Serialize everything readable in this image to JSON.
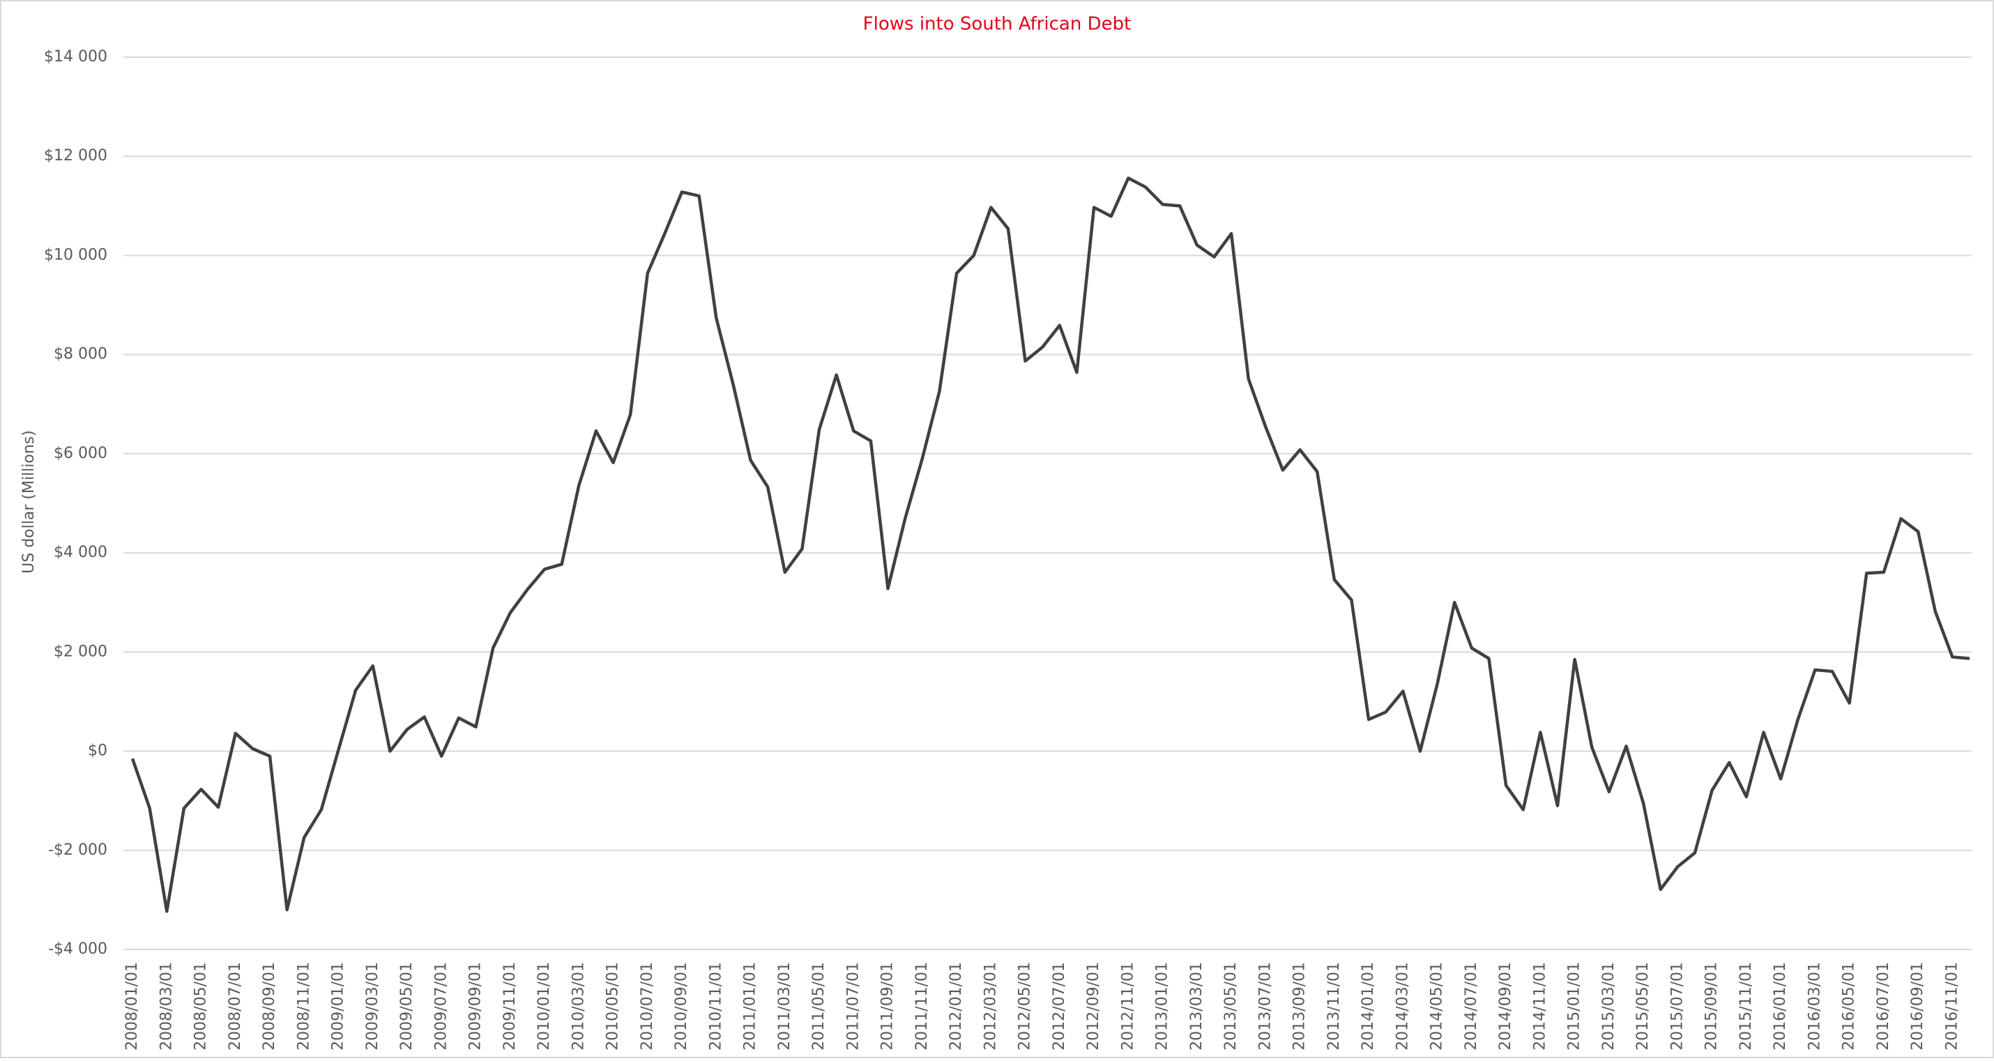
{
  "chart_data": {
    "type": "line",
    "title": "Flows into South African Debt",
    "y_label": "US dollar (Millions)",
    "color": "#404040",
    "grid": true,
    "ylim": [
      -4000,
      14000
    ],
    "yticks": [
      {
        "value": -4000,
        "label": "-$4 000"
      },
      {
        "value": -2000,
        "label": "-$2 000"
      },
      {
        "value": 0,
        "label": "$0"
      },
      {
        "value": 2000,
        "label": "$2 000"
      },
      {
        "value": 4000,
        "label": "$4 000"
      },
      {
        "value": 6000,
        "label": "$6 000"
      },
      {
        "value": 8000,
        "label": "$8 000"
      },
      {
        "value": 10000,
        "label": "$10 000"
      },
      {
        "value": 12000,
        "label": "$12 000"
      },
      {
        "value": 14000,
        "label": "$14 000"
      }
    ],
    "categories": [
      "2008/01/01",
      null,
      "2008/03/01",
      null,
      "2008/05/01",
      null,
      "2008/07/01",
      null,
      "2008/09/01",
      null,
      "2008/11/01",
      null,
      "2009/01/01",
      null,
      "2009/03/01",
      null,
      "2009/05/01",
      null,
      "2009/07/01",
      null,
      "2009/09/01",
      null,
      "2009/11/01",
      null,
      "2010/01/01",
      null,
      "2010/03/01",
      null,
      "2010/05/01",
      null,
      "2010/07/01",
      null,
      "2010/09/01",
      null,
      "2010/11/01",
      null,
      "2011/01/01",
      null,
      "2011/03/01",
      null,
      "2011/05/01",
      null,
      "2011/07/01",
      null,
      "2011/09/01",
      null,
      "2011/11/01",
      null,
      "2012/01/01",
      null,
      "2012/03/01",
      null,
      "2012/05/01",
      null,
      "2012/07/01",
      null,
      "2012/09/01",
      null,
      "2012/11/01",
      null,
      "2013/01/01",
      null,
      "2013/03/01",
      null,
      "2013/05/01",
      null,
      "2013/07/01",
      null,
      "2013/09/01",
      null,
      "2013/11/01",
      null,
      "2014/01/01",
      null,
      "2014/03/01",
      null,
      "2014/05/01",
      null,
      "2014/07/01",
      null,
      "2014/09/01",
      null,
      "2014/11/01",
      null,
      "2015/01/01",
      null,
      "2015/03/01",
      null,
      "2015/05/01",
      null,
      "2015/07/01",
      null,
      "2015/09/01",
      null,
      "2015/11/01",
      null,
      "2016/01/01",
      null,
      "2016/03/01",
      null,
      "2016/05/01",
      null,
      "2016/07/01",
      null,
      "2016/09/01",
      null,
      "2016/11/01",
      null
    ],
    "values": [
      -150,
      -1150,
      -3230,
      -1150,
      -770,
      -1130,
      360,
      50,
      -100,
      -3200,
      -1740,
      -1180,
      30,
      1230,
      1720,
      0,
      440,
      690,
      -100,
      670,
      490,
      2080,
      2790,
      3260,
      3670,
      3770,
      5360,
      6460,
      5820,
      6790,
      9640,
      10440,
      11280,
      11200,
      8740,
      7380,
      5870,
      5330,
      3610,
      4080,
      6490,
      7590,
      6460,
      6260,
      3280,
      4690,
      5900,
      7260,
      9640,
      10000,
      10970,
      10540,
      7870,
      8150,
      8590,
      7640,
      10970,
      10790,
      11560,
      11380,
      11030,
      11000,
      10210,
      9970,
      10440,
      7510,
      6540,
      5670,
      6080,
      5640,
      3460,
      3050,
      640,
      790,
      1210,
      0,
      1360,
      3000,
      2080,
      1870,
      -690,
      -1180,
      380,
      -1100,
      1850,
      80,
      -820,
      100,
      -1050,
      -2790,
      -2330,
      -2050,
      -790,
      -230,
      -920,
      380,
      -560,
      640,
      1640,
      1610,
      970,
      3590,
      3610,
      4690,
      4430,
      2820,
      1900,
      1870
    ]
  }
}
